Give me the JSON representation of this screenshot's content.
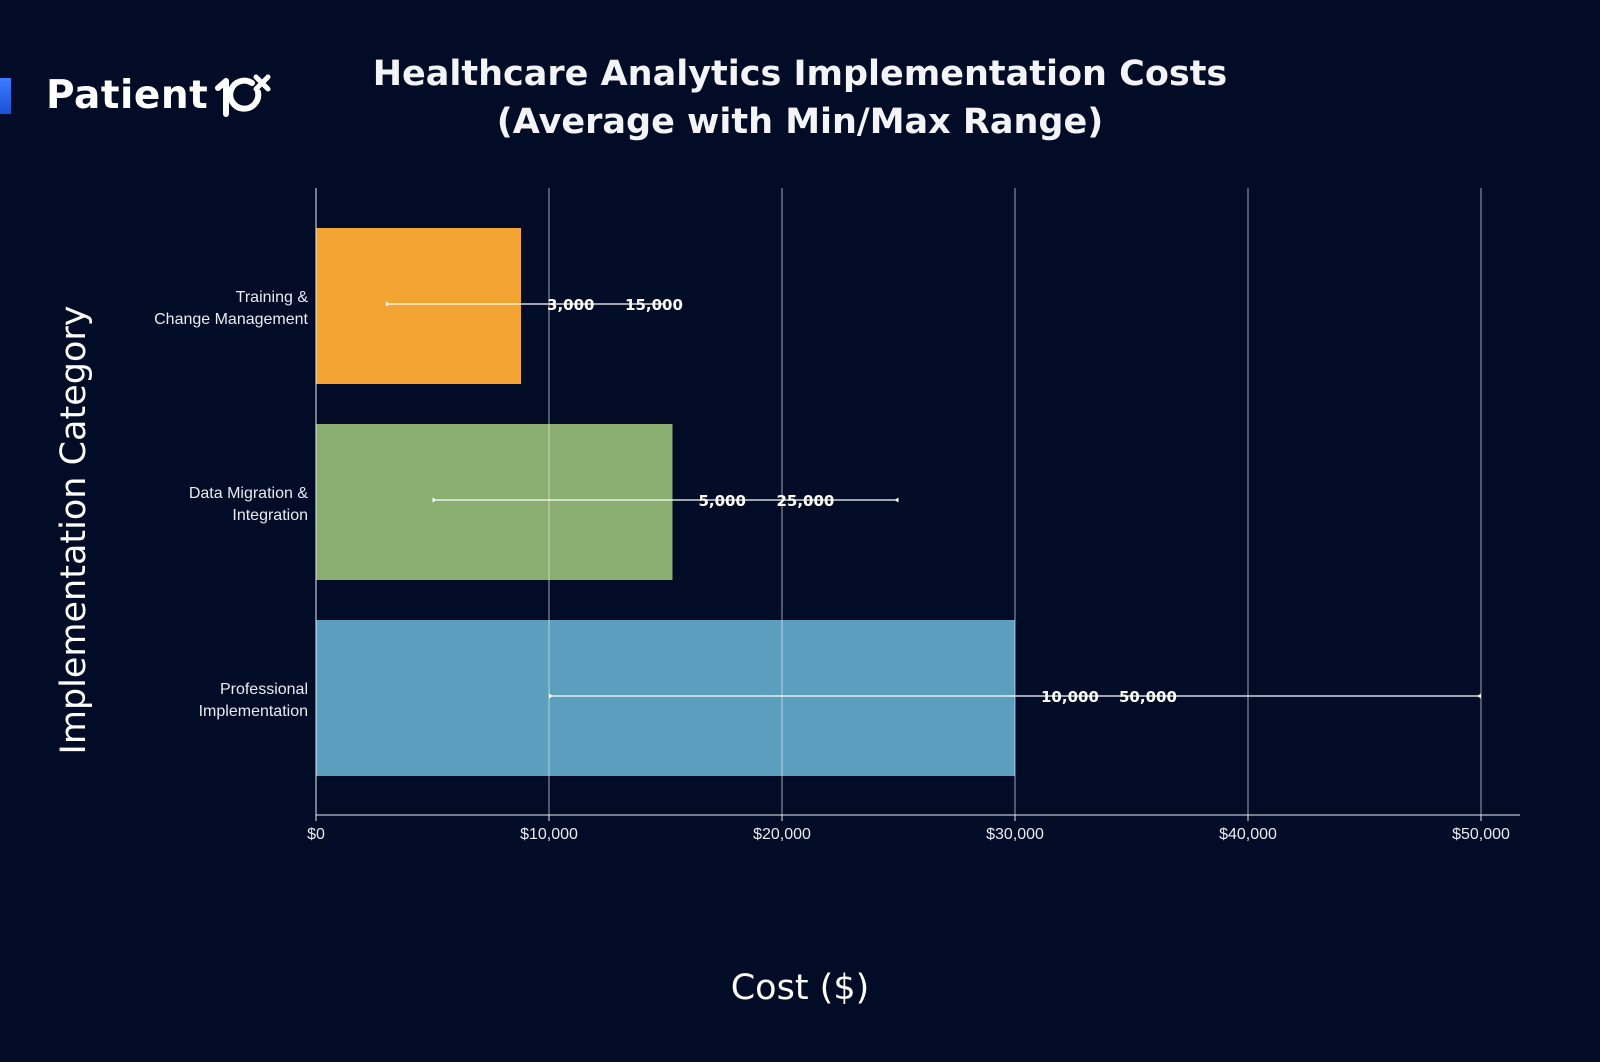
{
  "brand": {
    "name": "Patient",
    "mark_icon": "patient10x-logo-mark",
    "accent_color": "#2f6bff"
  },
  "chart_data": {
    "type": "bar",
    "orientation": "horizontal",
    "title_line1": "Healthcare Analytics Implementation Costs",
    "title_line2": "(Average with Min/Max Range)",
    "xlabel": "Cost ($)",
    "ylabel": "Implementation Category",
    "xlim": [
      0,
      50000
    ],
    "x_ticks": [
      0,
      10000,
      20000,
      30000,
      40000,
      50000
    ],
    "x_tick_labels": [
      "$0",
      "$10,000",
      "$20,000",
      "$30,000",
      "$40,000",
      "$50,000"
    ],
    "grid": true,
    "categories": [
      {
        "label_line1": "Training &",
        "label_line2": "Change Management",
        "average": 8800,
        "min": 3000,
        "max": 15000,
        "min_label": "3,000",
        "max_label": "15,000",
        "color": "#f2a533"
      },
      {
        "label_line1": "Data Migration &",
        "label_line2": "Integration",
        "average": 15300,
        "min": 5000,
        "max": 25000,
        "min_label": "5,000",
        "max_label": "25,000",
        "color": "#8aad70"
      },
      {
        "label_line1": "Professional",
        "label_line2": "Implementation",
        "average": 30000,
        "min": 10000,
        "max": 50000,
        "min_label": "10,000",
        "max_label": "50,000",
        "color": "#5b9ebd"
      }
    ]
  }
}
